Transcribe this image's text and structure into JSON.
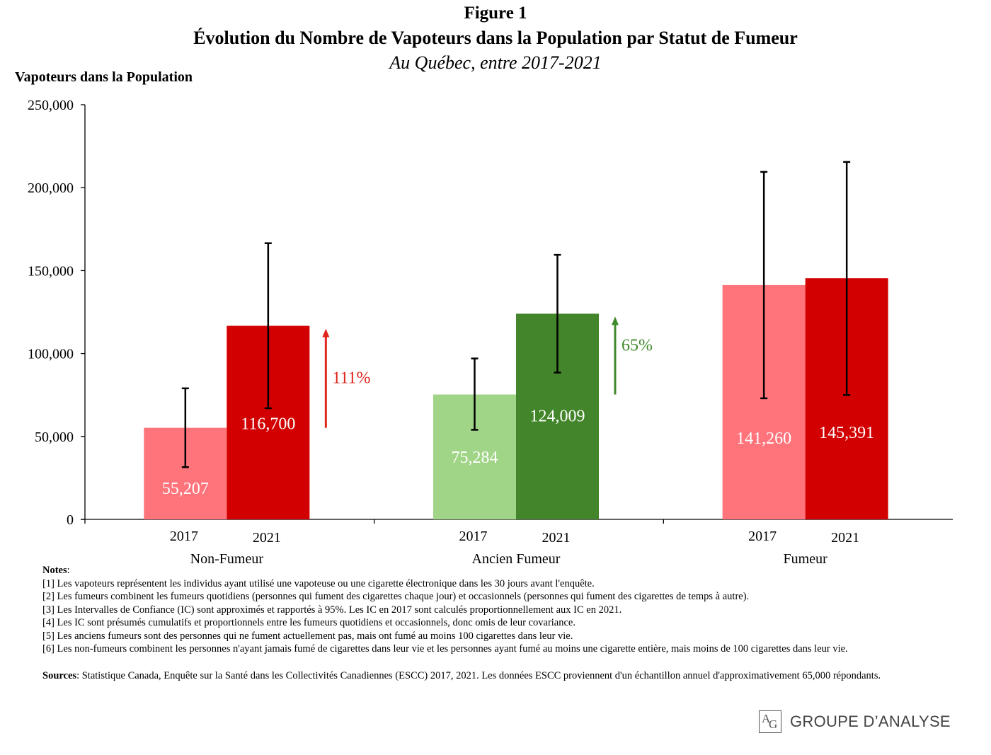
{
  "header": {
    "figure_label": "Figure 1",
    "title": "Évolution du Nombre de Vapoteurs dans la Population par Statut de Fumeur",
    "subtitle": "Au Québec, entre 2017-2021"
  },
  "chart_data": {
    "type": "bar",
    "ylabel": "Vapoteurs dans la Population",
    "ylim": [
      0,
      250000
    ],
    "yticks": [
      "0",
      "50,000",
      "100,000",
      "150,000",
      "200,000",
      "250,000"
    ],
    "yticks_values": [
      0,
      50000,
      100000,
      150000,
      200000,
      250000
    ],
    "grid": false,
    "groups": [
      {
        "category": "Non-Fumeur",
        "change_label": "111%",
        "change_color": "#e0261c",
        "bars": [
          {
            "year": "2017",
            "value": 55207,
            "label": "55,207",
            "ci": [
              31500,
              79000
            ],
            "color": "#ff737b"
          },
          {
            "year": "2021",
            "value": 116700,
            "label": "116,700",
            "ci": [
              67000,
              166500
            ],
            "color": "#d20000"
          }
        ]
      },
      {
        "category": "Ancien Fumeur",
        "change_label": "65%",
        "change_color": "#3f8a2a",
        "bars": [
          {
            "year": "2017",
            "value": 75284,
            "label": "75,284",
            "ci": [
              54000,
              97000
            ],
            "color": "#a0d486"
          },
          {
            "year": "2021",
            "value": 124009,
            "label": "124,009",
            "ci": [
              88500,
              159500
            ],
            "color": "#43852a"
          }
        ]
      },
      {
        "category": "Fumeur",
        "change_label": "",
        "change_color": "",
        "bars": [
          {
            "year": "2017",
            "value": 141260,
            "label": "141,260",
            "ci": [
              73000,
              209500
            ],
            "color": "#ff737b"
          },
          {
            "year": "2021",
            "value": 145391,
            "label": "145,391",
            "ci": [
              75000,
              215500
            ],
            "color": "#d20000"
          }
        ]
      }
    ]
  },
  "notes": {
    "heading": "Notes",
    "items": [
      "[1] Les vapoteurs représentent les individus ayant utilisé une vapoteuse ou une cigarette électronique dans les 30 jours avant l'enquête.",
      "[2] Les fumeurs combinent les fumeurs quotidiens (personnes qui fument des cigarettes chaque jour) et occasionnels (personnes qui fument des cigarettes de temps à autre).",
      "[3] Les Intervalles de Confiance (IC) sont approximés et rapportés à 95%. Les IC en 2017 sont calculés proportionnellement aux IC en 2021.",
      "[4] Les IC sont présumés cumulatifs et proportionnels entre les fumeurs quotidiens et occasionnels, donc omis de leur covariance.",
      "[5] Les anciens fumeurs sont des personnes qui ne fument actuellement pas, mais ont fumé au moins 100 cigarettes dans leur vie.",
      "[6] Les non-fumeurs combinent les personnes n'ayant jamais fumé de cigarettes dans leur vie et les personnes ayant fumé au moins une cigarette entière, mais moins de 100 cigarettes dans leur vie."
    ]
  },
  "sources": {
    "heading": "Sources",
    "text": ": Statistique Canada, Enquête sur la Santé dans les Collectivités Canadiennes (ESCC) 2017, 2021. Les données ESCC proviennent d'un échantillon annuel d'approximativement 65,000 répondants."
  },
  "logo": {
    "mark_a": "A",
    "mark_g": "G",
    "text": "GROUPE D’ANALYSE"
  }
}
